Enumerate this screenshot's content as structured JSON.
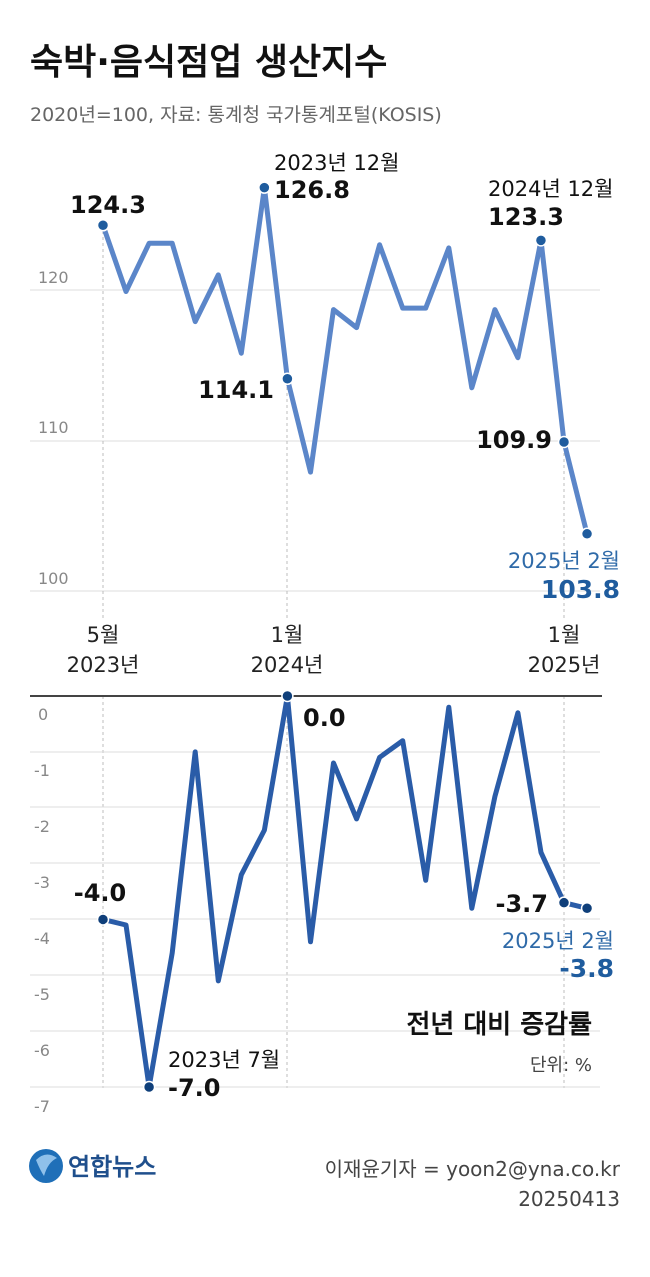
{
  "header": {
    "title": "숙박·음식점업 생산지수",
    "subtitle": "2020년=100, 자료: 통계청 국가통계포털(KOSIS)"
  },
  "chart_data": [
    {
      "type": "line",
      "title": "",
      "x": [
        "2023-05",
        "2023-06",
        "2023-07",
        "2023-08",
        "2023-09",
        "2023-10",
        "2023-11",
        "2023-12",
        "2024-01",
        "2024-02",
        "2024-03",
        "2024-04",
        "2024-05",
        "2024-06",
        "2024-07",
        "2024-08",
        "2024-09",
        "2024-10",
        "2024-11",
        "2024-12",
        "2025-01",
        "2025-02"
      ],
      "series": [
        {
          "values": [
            124.3,
            119.9,
            123.1,
            123.1,
            117.9,
            121.0,
            115.8,
            126.8,
            114.1,
            107.9,
            118.7,
            117.5,
            123.0,
            118.8,
            118.8,
            122.8,
            113.5,
            118.7,
            115.5,
            123.3,
            109.9,
            103.8
          ]
        }
      ],
      "yticks": [
        "100",
        "110",
        "120"
      ],
      "ylim": [
        97,
        129
      ],
      "xticks": [
        {
          "month": "5월",
          "year": "2023년"
        },
        {
          "month": "1월",
          "year": "2024년"
        },
        {
          "month": "1월",
          "year": "2025년"
        }
      ],
      "labels": {
        "start_value": "124.3",
        "peak_date": "2023년 12월",
        "peak_value": "126.8",
        "jan2024_value": "114.1",
        "dec2024_date": "2024년 12월",
        "dec2024_value": "123.3",
        "jan2025_value": "109.9",
        "last_date": "2025년 2월",
        "last_value": "103.8"
      },
      "colors": {
        "line": "#5b86c9",
        "marker": "#1f5c9e",
        "last_label": "#1f5c9e"
      }
    },
    {
      "type": "line",
      "title": "전년 대비 증감률",
      "unit": "단위: %",
      "x": [
        "2023-05",
        "2023-06",
        "2023-07",
        "2023-08",
        "2023-09",
        "2023-10",
        "2023-11",
        "2023-12",
        "2024-01",
        "2024-02",
        "2024-03",
        "2024-04",
        "2024-05",
        "2024-06",
        "2024-07",
        "2024-08",
        "2024-09",
        "2024-10",
        "2024-11",
        "2024-12",
        "2025-01",
        "2025-02"
      ],
      "series": [
        {
          "values": [
            -4.0,
            -4.1,
            -7.0,
            -4.6,
            -1.0,
            -5.1,
            -3.2,
            -2.4,
            0.0,
            -4.4,
            -1.2,
            -2.2,
            -1.1,
            -0.8,
            -3.3,
            -0.2,
            -3.8,
            -1.8,
            -0.3,
            -2.8,
            -3.7,
            -3.8
          ]
        }
      ],
      "yticks": [
        "0",
        "-1",
        "-2",
        "-3",
        "-4",
        "-5",
        "-6",
        "-7"
      ],
      "ylim": [
        -7,
        0
      ],
      "labels": {
        "start_value": "-4.0",
        "low_date": "2023년 7월",
        "low_value": "-7.0",
        "jan2024_value": "0.0",
        "jan2025_value": "-3.7",
        "last_date": "2025년 2월",
        "last_value": "-3.8"
      },
      "colors": {
        "line": "#2a5ca8",
        "marker": "#0f3f7a",
        "last_label": "#1f5c9e"
      }
    }
  ],
  "footer": {
    "logo": "연합뉴스",
    "reporter": "이재윤기자 = yoon2@yna.co.kr",
    "date": "20250413"
  }
}
